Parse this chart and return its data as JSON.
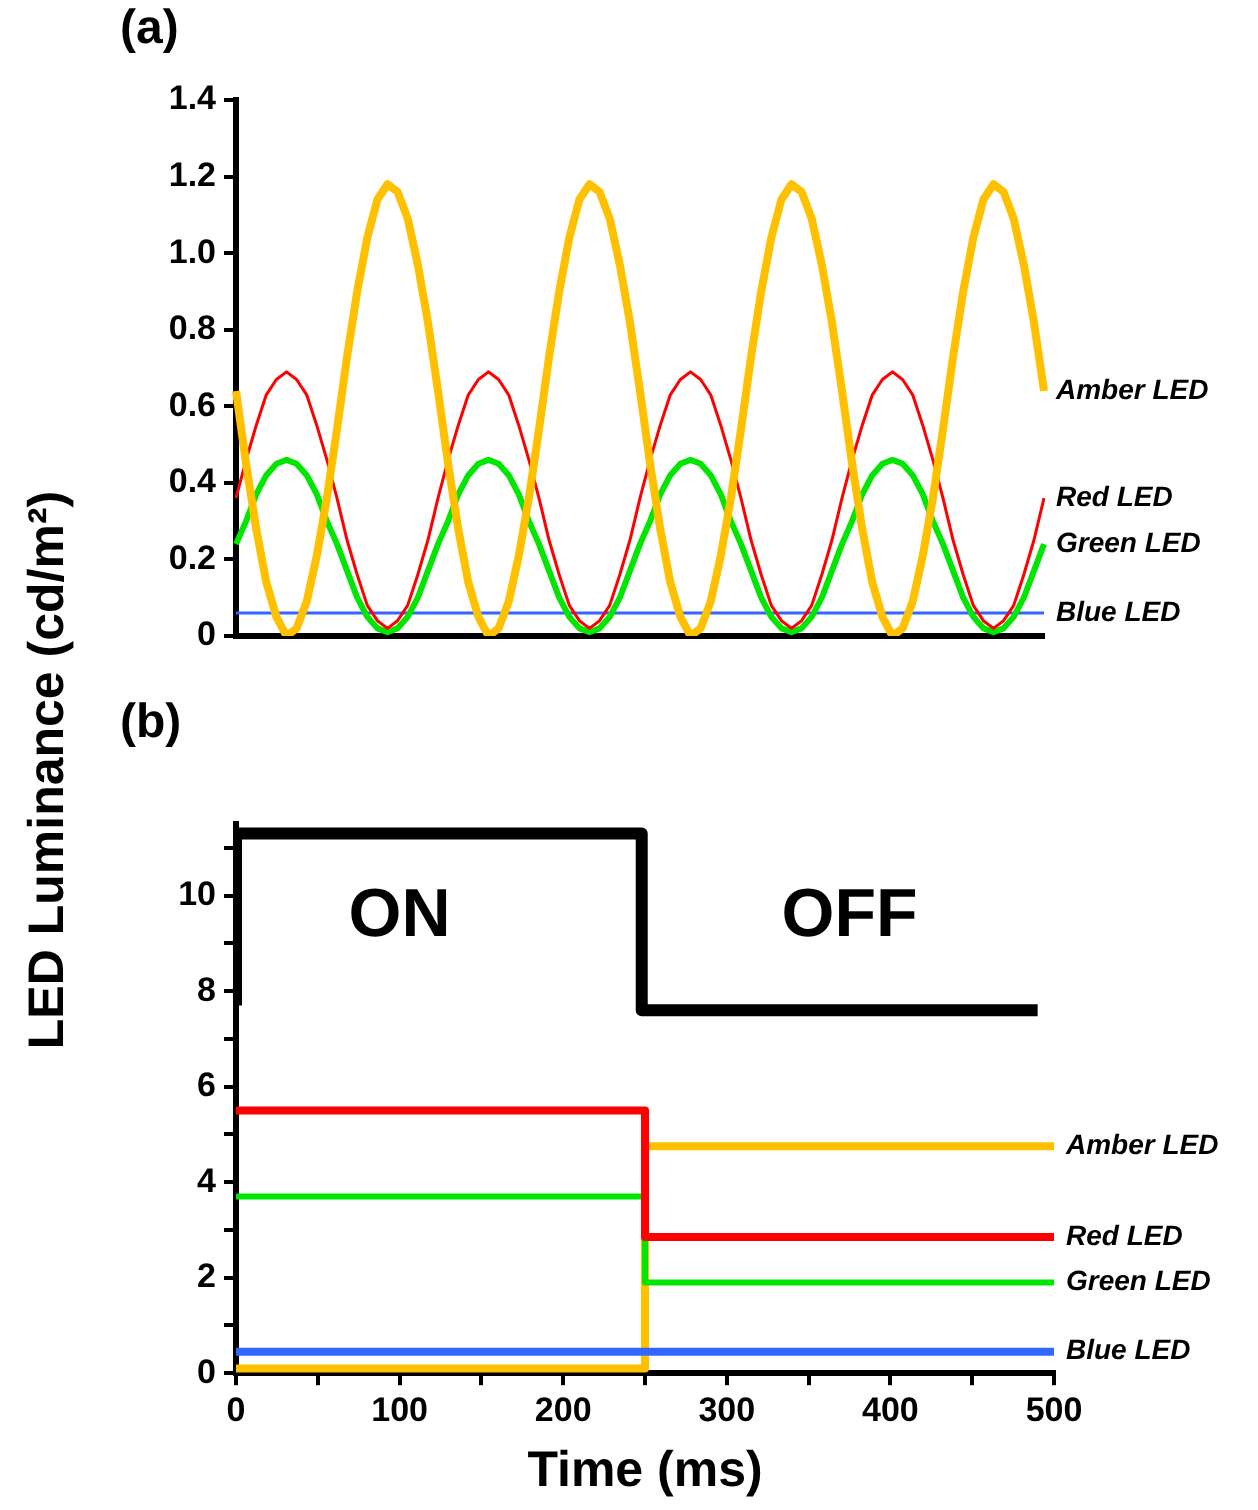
{
  "chart_data": [
    {
      "type": "line",
      "title": "(a)",
      "ylabel": "LED Luminance  (cd/m²)",
      "tick_labels": "y",
      "ylim": [
        0,
        1.4
      ],
      "yticks": [
        0,
        0.2,
        0.4,
        0.6,
        0.8,
        {
          "value": 1,
          "label": "1.0"
        },
        1.2,
        1.4
      ],
      "categories": [
        null,
        null,
        null,
        null,
        null,
        null,
        null,
        null,
        null,
        null,
        null,
        null,
        null,
        null,
        null,
        null,
        null,
        null,
        null,
        null,
        null,
        null,
        null,
        null,
        null,
        null,
        null,
        null,
        null,
        null,
        null,
        null,
        null,
        null,
        null,
        null,
        null,
        null,
        null,
        null,
        null,
        null,
        null,
        null,
        null,
        null,
        null,
        null,
        null,
        null,
        null,
        null,
        null,
        null,
        null,
        null,
        null,
        null,
        null,
        null,
        null,
        null,
        null,
        null,
        null,
        null,
        null,
        null,
        null,
        null,
        null,
        null,
        null,
        null,
        null,
        null,
        null,
        null,
        null,
        null,
        null
      ],
      "series": [
        {
          "name": "Amber LED",
          "color": "#ffc000",
          "values": [
            0.64,
            0.45,
            0.28,
            0.14,
            0.05,
            0.0,
            0.02,
            0.09,
            0.21,
            0.36,
            0.54,
            0.73,
            0.9,
            1.04,
            1.14,
            1.18,
            1.16,
            1.09,
            0.97,
            0.82,
            0.64,
            0.45,
            0.28,
            0.14,
            0.05,
            0.0,
            0.02,
            0.09,
            0.21,
            0.36,
            0.54,
            0.73,
            0.9,
            1.04,
            1.14,
            1.18,
            1.16,
            1.09,
            0.97,
            0.82,
            0.64,
            0.45,
            0.28,
            0.14,
            0.05,
            0.0,
            0.02,
            0.09,
            0.21,
            0.36,
            0.54,
            0.73,
            0.9,
            1.04,
            1.14,
            1.18,
            1.16,
            1.09,
            0.97,
            0.82,
            0.64,
            0.45,
            0.28,
            0.14,
            0.05,
            0.0,
            0.02,
            0.09,
            0.21,
            0.36,
            0.54,
            0.73,
            0.9,
            1.04,
            1.14,
            1.18,
            1.16,
            1.09,
            0.97,
            0.82,
            0.64
          ]
        },
        {
          "name": "Red LED",
          "color": "#ff0000",
          "values": [
            0.36,
            0.46,
            0.55,
            0.63,
            0.67,
            0.69,
            0.67,
            0.63,
            0.55,
            0.46,
            0.36,
            0.25,
            0.16,
            0.08,
            0.04,
            0.02,
            0.04,
            0.08,
            0.16,
            0.25,
            0.36,
            0.46,
            0.55,
            0.63,
            0.67,
            0.69,
            0.67,
            0.63,
            0.55,
            0.46,
            0.36,
            0.25,
            0.16,
            0.08,
            0.04,
            0.02,
            0.04,
            0.08,
            0.16,
            0.25,
            0.36,
            0.46,
            0.55,
            0.63,
            0.67,
            0.69,
            0.67,
            0.63,
            0.55,
            0.46,
            0.36,
            0.25,
            0.16,
            0.08,
            0.04,
            0.02,
            0.04,
            0.08,
            0.16,
            0.25,
            0.36,
            0.46,
            0.55,
            0.63,
            0.67,
            0.69,
            0.67,
            0.63,
            0.55,
            0.46,
            0.36,
            0.25,
            0.16,
            0.08,
            0.04,
            0.02,
            0.04,
            0.08,
            0.16,
            0.25,
            0.36
          ]
        },
        {
          "name": "Green LED",
          "color": "#00e600",
          "values": [
            0.24,
            0.3,
            0.37,
            0.42,
            0.45,
            0.46,
            0.45,
            0.42,
            0.37,
            0.3,
            0.24,
            0.17,
            0.1,
            0.05,
            0.02,
            0.01,
            0.02,
            0.05,
            0.1,
            0.17,
            0.24,
            0.3,
            0.37,
            0.42,
            0.45,
            0.46,
            0.45,
            0.42,
            0.37,
            0.3,
            0.24,
            0.17,
            0.1,
            0.05,
            0.02,
            0.01,
            0.02,
            0.05,
            0.1,
            0.17,
            0.24,
            0.3,
            0.37,
            0.42,
            0.45,
            0.46,
            0.45,
            0.42,
            0.37,
            0.3,
            0.24,
            0.17,
            0.1,
            0.05,
            0.02,
            0.01,
            0.02,
            0.05,
            0.1,
            0.17,
            0.24,
            0.3,
            0.37,
            0.42,
            0.45,
            0.46,
            0.45,
            0.42,
            0.37,
            0.3,
            0.24,
            0.17,
            0.1,
            0.05,
            0.02,
            0.01,
            0.02,
            0.05,
            0.1,
            0.17,
            0.24
          ]
        },
        {
          "name": "Blue LED",
          "color": "#3366ff",
          "values": [
            0.06,
            0.06,
            0.06,
            0.06,
            0.06,
            0.06,
            0.06,
            0.06,
            0.06,
            0.06,
            0.06,
            0.06,
            0.06,
            0.06,
            0.06,
            0.06,
            0.06,
            0.06,
            0.06,
            0.06,
            0.06,
            0.06,
            0.06,
            0.06,
            0.06,
            0.06,
            0.06,
            0.06,
            0.06,
            0.06,
            0.06,
            0.06,
            0.06,
            0.06,
            0.06,
            0.06,
            0.06,
            0.06,
            0.06,
            0.06,
            0.06,
            0.06,
            0.06,
            0.06,
            0.06,
            0.06,
            0.06,
            0.06,
            0.06,
            0.06,
            0.06,
            0.06,
            0.06,
            0.06,
            0.06,
            0.06,
            0.06,
            0.06,
            0.06,
            0.06,
            0.06,
            0.06,
            0.06,
            0.06,
            0.06,
            0.06,
            0.06,
            0.06,
            0.06,
            0.06,
            0.06,
            0.06,
            0.06,
            0.06,
            0.06,
            0.06,
            0.06,
            0.06,
            0.06,
            0.06,
            0.06
          ]
        }
      ]
    },
    {
      "type": "step",
      "title": "(b)",
      "xlabel": "Time (ms)",
      "xlim": [
        0,
        500
      ],
      "xticks": [
        0,
        {
          "value": 50,
          "label": null
        },
        100,
        {
          "value": 150,
          "label": null
        },
        200,
        {
          "value": 250,
          "label": null
        },
        300,
        {
          "value": 350,
          "label": null
        },
        400,
        {
          "value": 450,
          "label": null
        },
        500
      ],
      "ylim": [
        0,
        11.5
      ],
      "yticks": [
        0,
        {
          "value": 1,
          "label": null
        },
        2,
        {
          "value": 3,
          "label": null
        },
        4,
        {
          "value": 5,
          "label": null
        },
        6,
        {
          "value": 7,
          "label": null
        },
        8,
        {
          "value": 9,
          "label": null
        },
        10,
        {
          "value": 11,
          "label": null
        }
      ],
      "annotations": [
        "ON",
        "OFF"
      ],
      "series": [
        {
          "color": "#000000",
          "x": [
            0,
            0,
            248,
            490
          ],
          "values": [
            7.7,
            11.3,
            7.6,
            7.6
          ]
        },
        {
          "name": "Red LED",
          "color": "#ff0000",
          "x": [
            0,
            250,
            500
          ],
          "values": [
            5.5,
            2.85,
            2.85
          ]
        },
        {
          "name": "Green LED",
          "color": "#00e600",
          "x": [
            0,
            250,
            500
          ],
          "values": [
            3.7,
            1.9,
            1.9
          ]
        },
        {
          "name": "Blue LED",
          "color": "#3366ff",
          "x": [
            0,
            500
          ],
          "values": [
            0.45,
            0.45
          ]
        },
        {
          "name": "Amber LED",
          "color": "#ffc000",
          "x": [
            0,
            250,
            500
          ],
          "values": [
            0.1,
            4.75,
            4.75
          ]
        }
      ]
    }
  ]
}
